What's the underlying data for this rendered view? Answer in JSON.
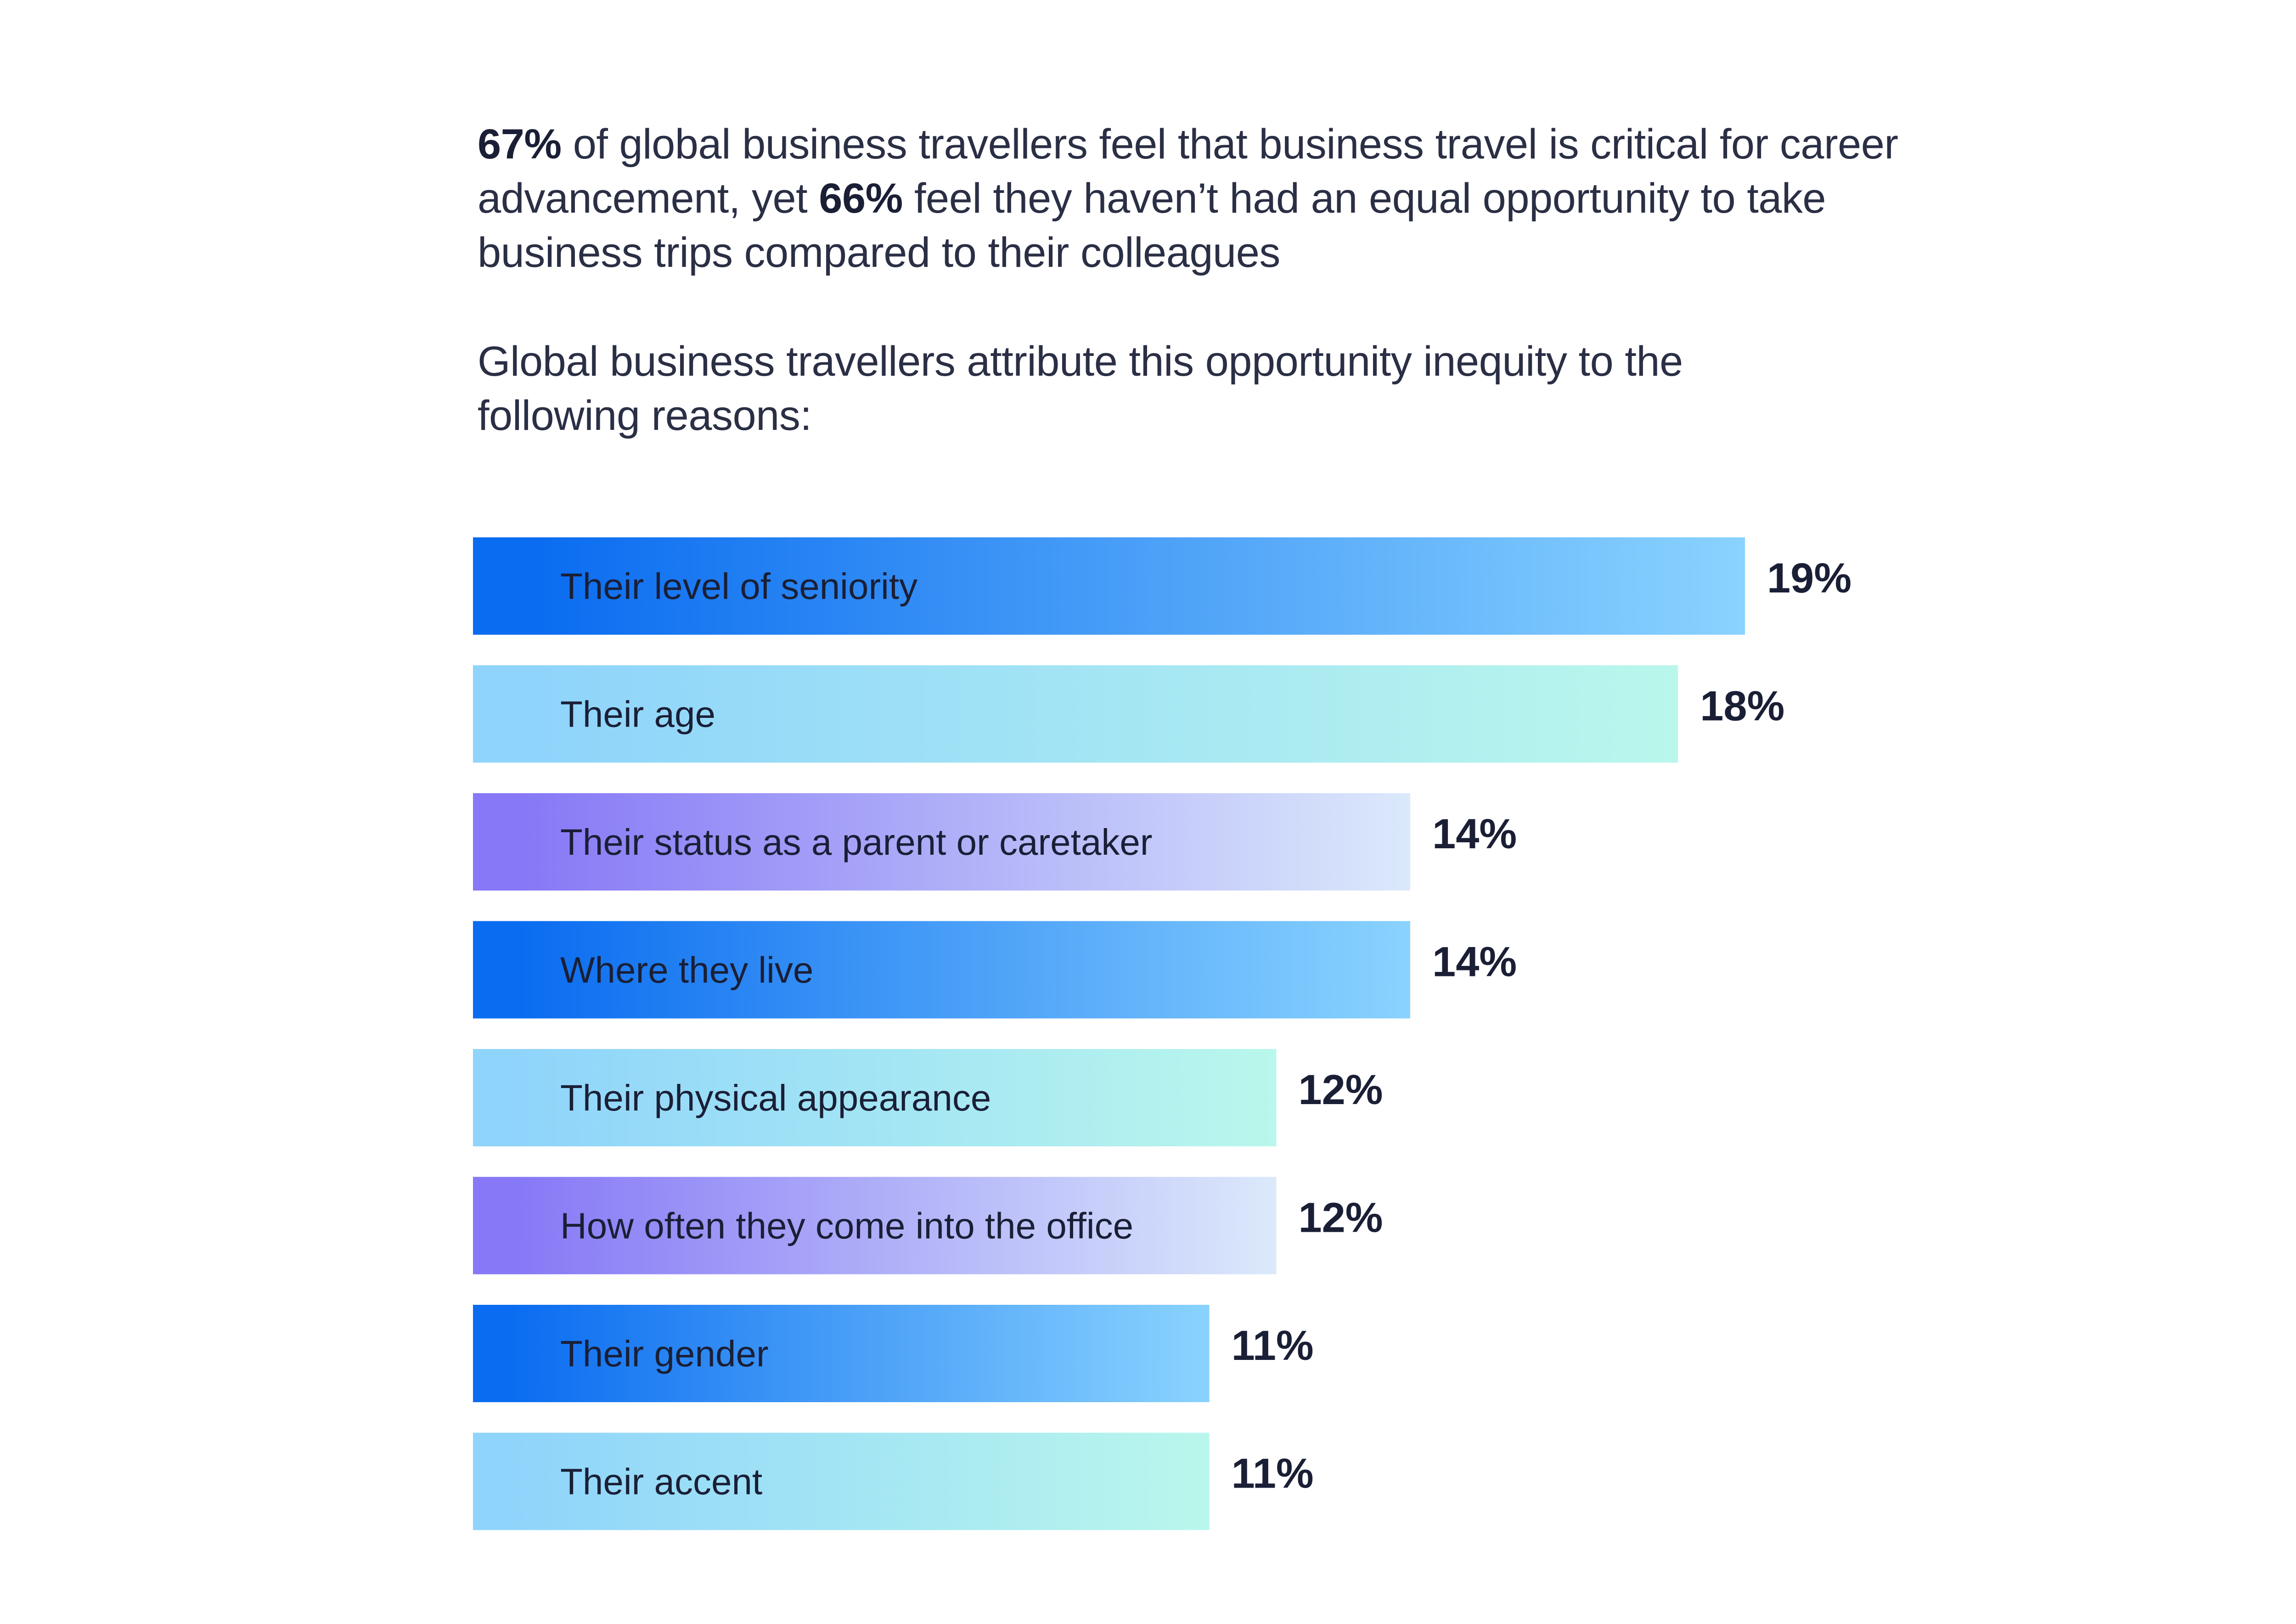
{
  "headline": {
    "stat1": "67%",
    "text1": " of global business travellers feel that business travel is critical for career advancement, yet ",
    "stat2": "66%",
    "text2": " feel they haven’t had an equal opportunity to take business trips compared to their colleagues"
  },
  "subhead": "Global business travellers attribute this opportunity inequity to the following reasons:",
  "chart_data": {
    "type": "bar",
    "orientation": "horizontal",
    "categories": [
      "Their level of seniority",
      "Their age",
      "Their status as a parent or caretaker",
      "Where they live",
      "Their physical appearance",
      "How often they come into the office",
      "Their gender",
      "Their accent"
    ],
    "values": [
      19,
      18,
      14,
      14,
      12,
      12,
      11,
      11
    ],
    "value_labels": [
      "19%",
      "18%",
      "14%",
      "14%",
      "12%",
      "12%",
      "11%",
      "11%"
    ],
    "unit": "%",
    "xlim": [
      0,
      19
    ],
    "grid": false,
    "legend": "none",
    "bar_gradients": [
      [
        "#0a6cf0",
        "#8ad3ff"
      ],
      [
        "#8fd4fb",
        "#b9f7ec"
      ],
      [
        "#8678f6",
        "#dbe9fb"
      ],
      [
        "#0a6cf0",
        "#8ad3ff"
      ],
      [
        "#8fd4fb",
        "#b9f7ec"
      ],
      [
        "#8678f6",
        "#dbe9fb"
      ],
      [
        "#0a6cf0",
        "#8ad3ff"
      ],
      [
        "#8fd4fb",
        "#b9f7ec"
      ]
    ]
  }
}
